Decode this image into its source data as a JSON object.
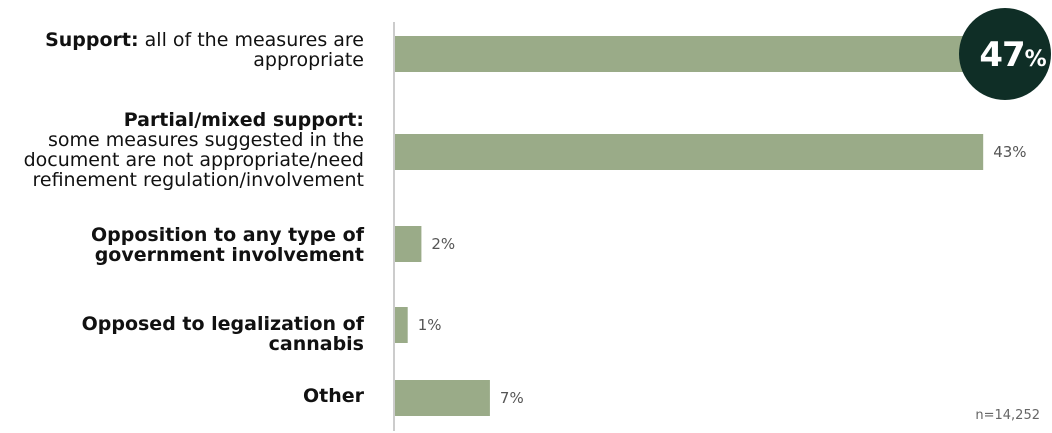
{
  "chart_data": {
    "type": "bar",
    "orientation": "horizontal",
    "categories": [
      {
        "bold": "Support:",
        "rest": "all of the measures are appropriate"
      },
      {
        "bold": "Partial/mixed support:",
        "rest": "some measures suggested in the document are not appropriate/need refinement regulation/involvement"
      },
      {
        "bold": "Opposition to any type of government involvement",
        "rest": ""
      },
      {
        "bold": "Opposed to legalization of cannabis",
        "rest": ""
      },
      {
        "bold": "Other",
        "rest": ""
      }
    ],
    "values": [
      47,
      43,
      2,
      1,
      7
    ],
    "value_labels": [
      "47%",
      "43%",
      "2%",
      "1%",
      "7%"
    ],
    "highlight": {
      "index": 0,
      "value": "47",
      "unit": "%"
    },
    "note": "n=14,252",
    "xlim": [
      0,
      47
    ],
    "bar_color": "#9aab88",
    "highlight_color": "#0f2e26",
    "axis_color": "#999999"
  }
}
